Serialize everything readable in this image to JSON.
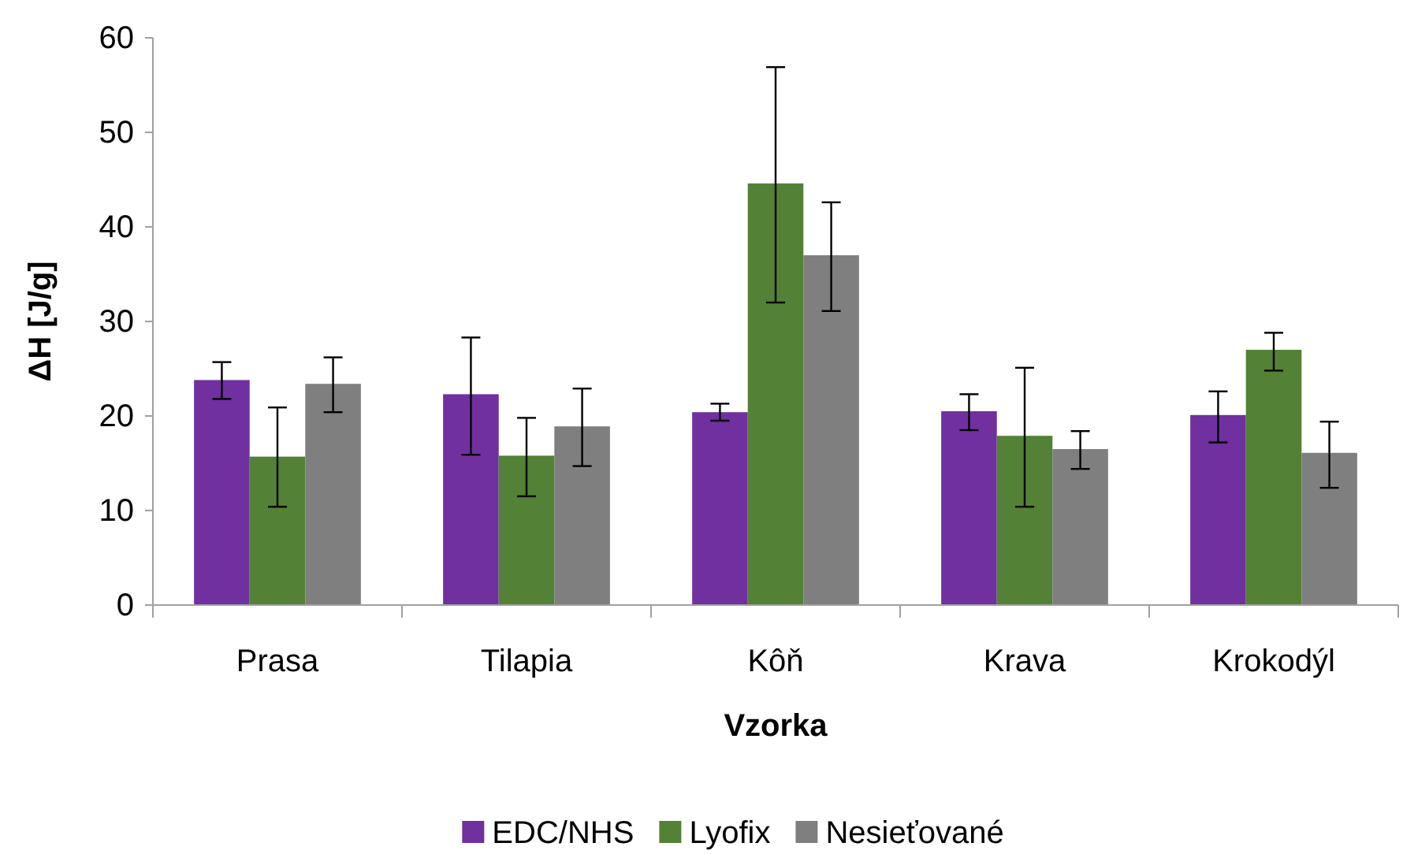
{
  "chart_data": {
    "type": "bar",
    "xlabel": "Vzorka",
    "ylabel": "ΔH [J/g]",
    "categories": [
      "Prasa",
      "Tilapia",
      "Kôň",
      "Krava",
      "Krokodýl"
    ],
    "series": [
      {
        "name": "EDC/NHS",
        "color": "#7030a0",
        "values": [
          23.8,
          22.3,
          20.4,
          20.5,
          20.1
        ],
        "errors": [
          [
            21.8,
            25.7
          ],
          [
            15.9,
            28.3
          ],
          [
            19.5,
            21.3
          ],
          [
            18.5,
            22.3
          ],
          [
            17.2,
            22.6
          ]
        ]
      },
      {
        "name": "Lyofix",
        "color": "#538135",
        "values": [
          15.7,
          15.8,
          44.6,
          17.9,
          27.0
        ],
        "errors": [
          [
            10.4,
            20.9
          ],
          [
            11.5,
            19.8
          ],
          [
            32.0,
            56.9
          ],
          [
            10.4,
            25.1
          ],
          [
            24.8,
            28.8
          ]
        ]
      },
      {
        "name": "Nesieťované",
        "color": "#7f7f7f",
        "values": [
          23.4,
          18.9,
          37.0,
          16.5,
          16.1
        ],
        "errors": [
          [
            20.4,
            26.2
          ],
          [
            14.7,
            22.9
          ],
          [
            31.1,
            42.6
          ],
          [
            14.4,
            18.4
          ],
          [
            12.4,
            19.4
          ]
        ]
      }
    ],
    "ylim": [
      0,
      60
    ],
    "yticks": [
      0,
      10,
      20,
      30,
      40,
      50,
      60
    ],
    "grid": false,
    "legend": "bottom"
  }
}
